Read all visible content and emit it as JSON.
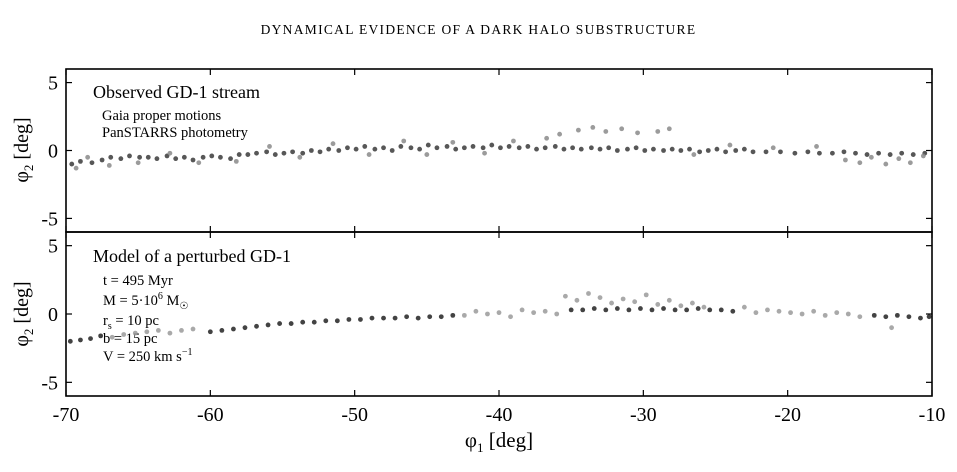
{
  "page": {
    "running_head": "DYNAMICAL EVIDENCE OF A DARK HALO SUBSTRUCTURE"
  },
  "chart_data": [
    {
      "type": "scatter",
      "panel": "top",
      "title": "Observed GD-1 stream",
      "annotations": [
        "Gaia proper motions",
        "PanSTARRS photometry"
      ],
      "xlabel": "",
      "ylabel": {
        "base": "φ",
        "sub": "2",
        "rest": " [deg]"
      },
      "xlim": [
        -70,
        -10
      ],
      "ylim": [
        -6,
        6
      ],
      "yticks": [
        5,
        0,
        -5
      ],
      "ytick_labels": [
        "5",
        "0",
        "-5"
      ],
      "series": [
        {
          "color": "#3a3a3a",
          "points": [
            [
              -69.6,
              -1.0
            ],
            [
              -69.0,
              -0.8
            ],
            [
              -68.2,
              -0.9
            ],
            [
              -67.5,
              -0.7
            ],
            [
              -66.9,
              -0.5
            ],
            [
              -66.2,
              -0.6
            ],
            [
              -65.6,
              -0.4
            ],
            [
              -64.9,
              -0.5
            ],
            [
              -64.3,
              -0.5
            ],
            [
              -63.7,
              -0.6
            ],
            [
              -63.0,
              -0.4
            ],
            [
              -62.4,
              -0.6
            ],
            [
              -61.8,
              -0.5
            ],
            [
              -61.2,
              -0.7
            ],
            [
              -60.5,
              -0.5
            ],
            [
              -59.9,
              -0.4
            ],
            [
              -59.3,
              -0.5
            ],
            [
              -58.6,
              -0.6
            ],
            [
              -58.0,
              -0.3
            ],
            [
              -57.4,
              -0.3
            ],
            [
              -56.8,
              -0.2
            ],
            [
              -56.1,
              -0.1
            ],
            [
              -55.5,
              -0.3
            ],
            [
              -54.9,
              -0.2
            ],
            [
              -54.3,
              -0.1
            ],
            [
              -53.6,
              -0.2
            ],
            [
              -53.0,
              0.0
            ],
            [
              -52.4,
              -0.1
            ],
            [
              -51.8,
              0.1
            ],
            [
              -51.1,
              0.0
            ],
            [
              -50.5,
              0.2
            ],
            [
              -49.9,
              0.1
            ],
            [
              -49.3,
              0.3
            ],
            [
              -48.6,
              0.1
            ],
            [
              -48.0,
              0.2
            ],
            [
              -47.4,
              0.0
            ],
            [
              -46.8,
              0.3
            ],
            [
              -46.1,
              0.2
            ],
            [
              -45.5,
              0.1
            ],
            [
              -44.9,
              0.4
            ],
            [
              -44.3,
              0.2
            ],
            [
              -43.6,
              0.3
            ],
            [
              -43.0,
              0.1
            ],
            [
              -42.4,
              0.2
            ],
            [
              -41.8,
              0.3
            ],
            [
              -41.1,
              0.2
            ],
            [
              -40.5,
              0.4
            ],
            [
              -39.9,
              0.2
            ],
            [
              -39.3,
              0.3
            ],
            [
              -38.6,
              0.2
            ],
            [
              -38.0,
              0.3
            ],
            [
              -37.4,
              0.1
            ],
            [
              -36.8,
              0.2
            ],
            [
              -36.1,
              0.3
            ],
            [
              -35.5,
              0.1
            ],
            [
              -34.9,
              0.2
            ],
            [
              -34.3,
              0.1
            ],
            [
              -33.6,
              0.2
            ],
            [
              -33.0,
              0.1
            ],
            [
              -32.4,
              0.2
            ],
            [
              -31.8,
              0.0
            ],
            [
              -31.1,
              0.1
            ],
            [
              -30.5,
              0.2
            ],
            [
              -29.9,
              0.0
            ],
            [
              -29.3,
              0.1
            ],
            [
              -28.6,
              0.0
            ],
            [
              -28.0,
              0.1
            ],
            [
              -27.4,
              0.0
            ],
            [
              -26.8,
              0.1
            ],
            [
              -26.1,
              -0.1
            ],
            [
              -25.5,
              0.0
            ],
            [
              -24.9,
              0.1
            ],
            [
              -24.3,
              -0.1
            ],
            [
              -23.6,
              0.0
            ],
            [
              -23.0,
              0.1
            ],
            [
              -22.4,
              -0.1
            ],
            [
              -21.5,
              -0.1
            ],
            [
              -20.5,
              -0.1
            ],
            [
              -19.5,
              -0.2
            ],
            [
              -18.6,
              -0.1
            ],
            [
              -17.8,
              -0.2
            ],
            [
              -16.9,
              -0.2
            ],
            [
              -16.1,
              -0.1
            ],
            [
              -15.3,
              -0.2
            ],
            [
              -14.5,
              -0.3
            ],
            [
              -13.7,
              -0.2
            ],
            [
              -12.9,
              -0.3
            ],
            [
              -12.1,
              -0.2
            ],
            [
              -11.3,
              -0.3
            ],
            [
              -10.5,
              -0.2
            ]
          ]
        },
        {
          "color": "#8a8a8a",
          "points": [
            [
              -69.3,
              -1.3
            ],
            [
              -68.5,
              -0.5
            ],
            [
              -67.0,
              -1.1
            ],
            [
              -65.0,
              -0.9
            ],
            [
              -62.8,
              -0.2
            ],
            [
              -60.8,
              -0.9
            ],
            [
              -58.2,
              -0.8
            ],
            [
              -55.9,
              0.3
            ],
            [
              -53.8,
              -0.5
            ],
            [
              -51.5,
              0.5
            ],
            [
              -49.0,
              -0.3
            ],
            [
              -46.6,
              0.7
            ],
            [
              -45.0,
              -0.3
            ],
            [
              -43.2,
              0.6
            ],
            [
              -41.0,
              -0.2
            ],
            [
              -39.0,
              0.7
            ],
            [
              -36.7,
              0.9
            ],
            [
              -35.8,
              1.2
            ],
            [
              -34.5,
              1.5
            ],
            [
              -33.5,
              1.7
            ],
            [
              -32.6,
              1.4
            ],
            [
              -31.5,
              1.6
            ],
            [
              -30.4,
              1.3
            ],
            [
              -29.0,
              1.4
            ],
            [
              -28.2,
              1.6
            ],
            [
              -26.5,
              -0.3
            ],
            [
              -24.0,
              0.4
            ],
            [
              -21.0,
              0.2
            ],
            [
              -18.0,
              0.3
            ],
            [
              -16.0,
              -0.7
            ],
            [
              -15.0,
              -0.9
            ],
            [
              -14.2,
              -0.5
            ],
            [
              -13.2,
              -1.0
            ],
            [
              -12.3,
              -0.6
            ],
            [
              -11.5,
              -0.9
            ],
            [
              -10.6,
              -0.4
            ]
          ]
        }
      ]
    },
    {
      "type": "scatter",
      "panel": "bottom",
      "title": "Model of a perturbed GD-1",
      "annotations": [
        {
          "text": "t = 495 Myr"
        },
        {
          "text": "M = 5·10",
          "sup": "6",
          "rest": " M",
          "sub": "☉"
        },
        {
          "text": "r",
          "sub": "s",
          "rest": " = 10 pc"
        },
        {
          "text": "b = 15 pc"
        },
        {
          "text": "V = 250 km s",
          "sup": "−1"
        }
      ],
      "xlabel": {
        "base": "φ",
        "sub": "1",
        "rest": " [deg]"
      },
      "ylabel": {
        "base": "φ",
        "sub": "2",
        "rest": " [deg]"
      },
      "xlim": [
        -70,
        -10
      ],
      "ylim": [
        -6,
        6
      ],
      "xticks": [
        -70,
        -60,
        -50,
        -40,
        -30,
        -20,
        -10
      ],
      "xtick_labels": [
        "-70",
        "-60",
        "-50",
        "-40",
        "-30",
        "-20",
        "-10"
      ],
      "yticks": [
        5,
        0,
        -5
      ],
      "ytick_labels": [
        "5",
        "0",
        "-5"
      ],
      "series": [
        {
          "color": "#222222",
          "points": [
            [
              -69.7,
              -2.0
            ],
            [
              -69.0,
              -1.9
            ],
            [
              -68.3,
              -1.8
            ],
            [
              -67.6,
              -1.6
            ],
            [
              -60.0,
              -1.3
            ],
            [
              -59.2,
              -1.2
            ],
            [
              -58.4,
              -1.1
            ],
            [
              -57.6,
              -1.0
            ],
            [
              -56.8,
              -0.9
            ],
            [
              -56.0,
              -0.8
            ],
            [
              -55.2,
              -0.7
            ],
            [
              -54.4,
              -0.7
            ],
            [
              -53.6,
              -0.6
            ],
            [
              -52.8,
              -0.6
            ],
            [
              -52.0,
              -0.5
            ],
            [
              -51.2,
              -0.5
            ],
            [
              -50.4,
              -0.4
            ],
            [
              -49.6,
              -0.4
            ],
            [
              -48.8,
              -0.3
            ],
            [
              -48.0,
              -0.3
            ],
            [
              -47.2,
              -0.3
            ],
            [
              -46.4,
              -0.2
            ],
            [
              -45.6,
              -0.3
            ],
            [
              -44.8,
              -0.2
            ],
            [
              -44.0,
              -0.2
            ],
            [
              -43.2,
              -0.1
            ],
            [
              -35.0,
              0.3
            ],
            [
              -34.2,
              0.3
            ],
            [
              -33.4,
              0.4
            ],
            [
              -32.6,
              0.3
            ],
            [
              -31.8,
              0.4
            ],
            [
              -31.0,
              0.3
            ],
            [
              -30.2,
              0.4
            ],
            [
              -29.4,
              0.3
            ],
            [
              -28.6,
              0.4
            ],
            [
              -27.8,
              0.3
            ],
            [
              -27.0,
              0.3
            ],
            [
              -26.2,
              0.4
            ],
            [
              -25.4,
              0.3
            ],
            [
              -24.6,
              0.3
            ],
            [
              -23.8,
              0.2
            ],
            [
              -14.0,
              -0.1
            ],
            [
              -13.2,
              -0.2
            ],
            [
              -12.4,
              -0.1
            ],
            [
              -11.6,
              -0.2
            ],
            [
              -10.8,
              -0.3
            ],
            [
              -10.2,
              -0.2
            ]
          ]
        },
        {
          "color": "#9a9a9a",
          "points": [
            [
              -66.8,
              -1.7
            ],
            [
              -66.0,
              -1.5
            ],
            [
              -65.2,
              -1.4
            ],
            [
              -64.4,
              -1.3
            ],
            [
              -63.6,
              -1.2
            ],
            [
              -62.8,
              -1.4
            ],
            [
              -62.0,
              -1.2
            ],
            [
              -61.2,
              -1.1
            ],
            [
              -42.4,
              -0.1
            ],
            [
              -41.6,
              0.2
            ],
            [
              -40.8,
              0.0
            ],
            [
              -40.0,
              0.1
            ],
            [
              -39.2,
              -0.2
            ],
            [
              -38.4,
              0.3
            ],
            [
              -37.6,
              0.1
            ],
            [
              -36.8,
              0.2
            ],
            [
              -36.0,
              0.0
            ],
            [
              -35.4,
              1.3
            ],
            [
              -34.6,
              1.0
            ],
            [
              -33.8,
              1.5
            ],
            [
              -33.0,
              1.2
            ],
            [
              -32.2,
              0.8
            ],
            [
              -31.4,
              1.1
            ],
            [
              -30.6,
              0.9
            ],
            [
              -29.8,
              1.4
            ],
            [
              -29.0,
              0.7
            ],
            [
              -28.2,
              1.0
            ],
            [
              -27.4,
              0.6
            ],
            [
              -26.6,
              0.8
            ],
            [
              -25.8,
              0.5
            ],
            [
              -23.0,
              0.5
            ],
            [
              -22.2,
              0.1
            ],
            [
              -21.4,
              0.3
            ],
            [
              -20.6,
              0.2
            ],
            [
              -19.8,
              0.1
            ],
            [
              -19.0,
              0.0
            ],
            [
              -18.2,
              0.2
            ],
            [
              -17.4,
              -0.1
            ],
            [
              -16.6,
              0.1
            ],
            [
              -15.8,
              0.0
            ],
            [
              -15.0,
              -0.2
            ],
            [
              -12.8,
              -1.0
            ]
          ]
        }
      ]
    }
  ]
}
